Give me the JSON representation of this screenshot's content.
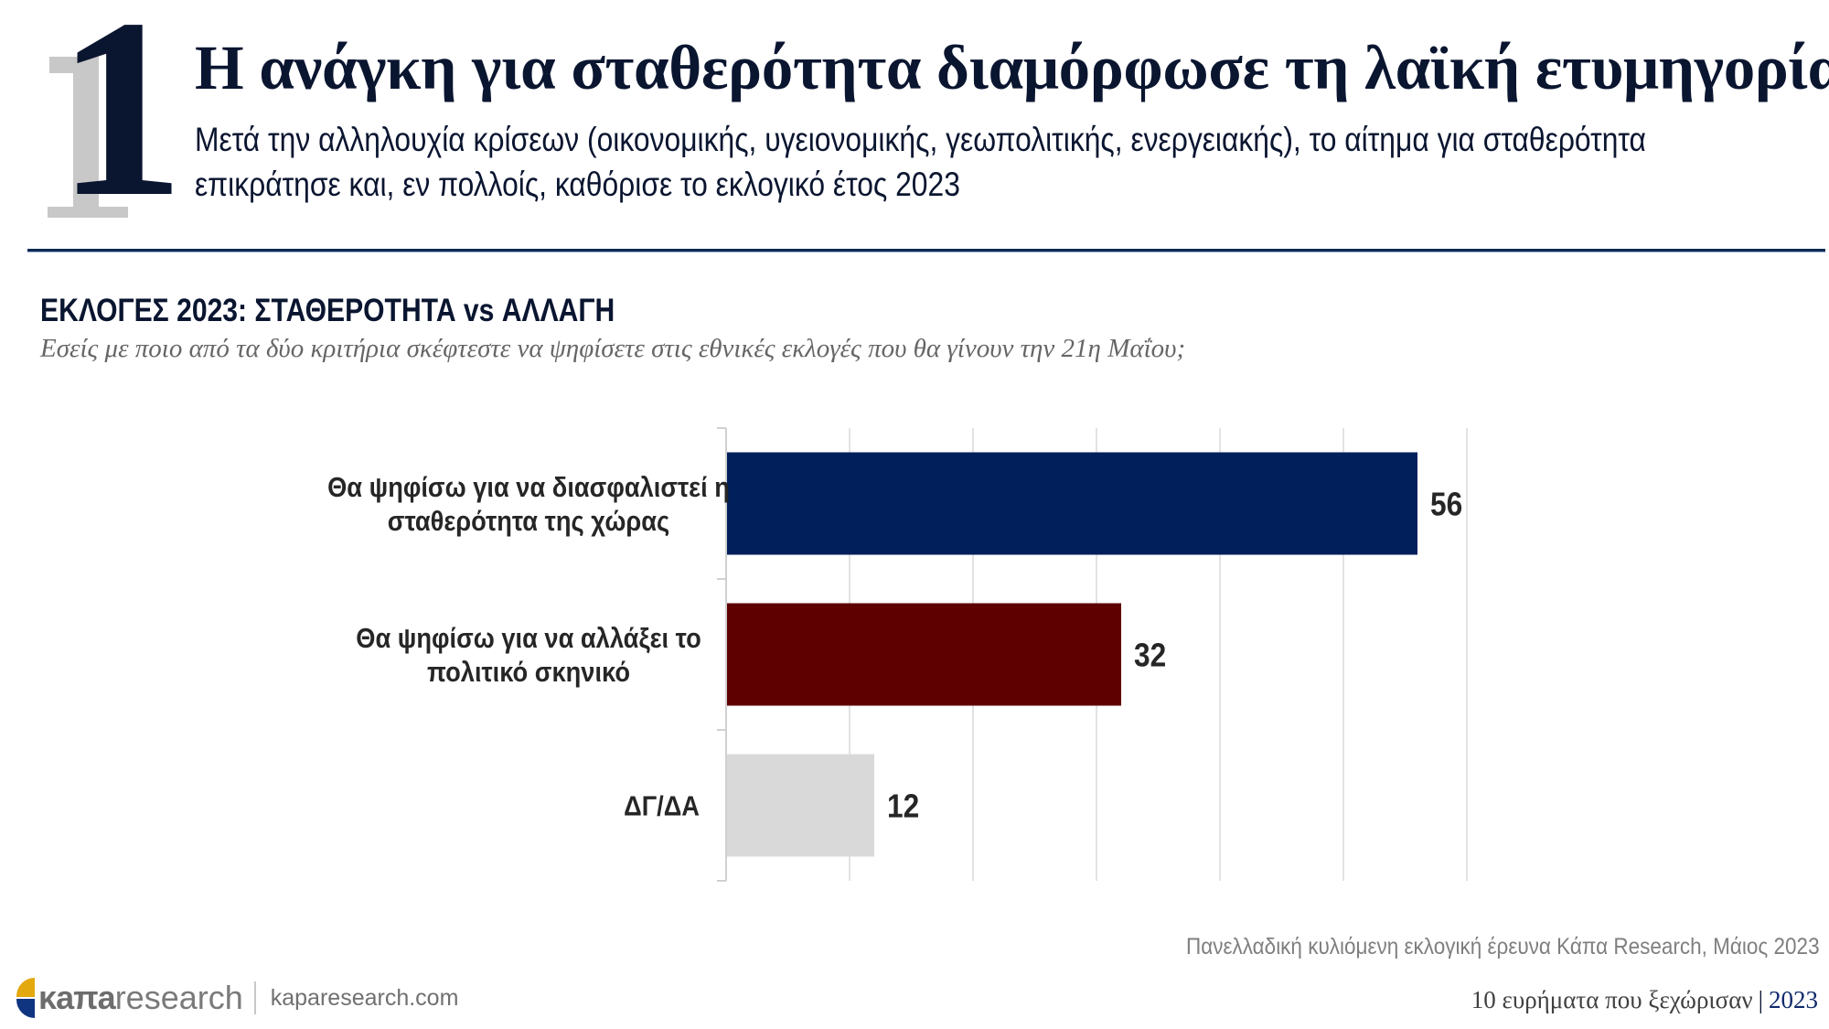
{
  "header": {
    "number": "1",
    "title": "Η ανάγκη για σταθερότητα διαμόρφωσε τη λαϊκή ετυμηγορία",
    "subtitle_line1": "Μετά την αλληλουχία κρίσεων (οικονομικής, υγειονομικής, γεωπολιτικής, ενεργειακής), το αίτημα για σταθερότητα",
    "subtitle_line2": "επικράτησε και, εν πολλοίς, καθόρισε το εκλογικό έτος 2023"
  },
  "section": {
    "title": "ΕΚΛΟΓΕΣ 2023: ΣΤΑΘΕΡΟΤΗΤΑ vs ΑΛΛΑΓΗ",
    "question": "Εσείς με ποιο από τα δύο κριτήρια σκέφτεστε να ψηφίσετε στις εθνικές εκλογές που θα γίνουν την 21η Μαΐου;"
  },
  "chart_data": {
    "type": "bar",
    "orientation": "horizontal",
    "title": "ΕΚΛΟΓΕΣ 2023: ΣΤΑΘΕΡΟΤΗΤΑ vs ΑΛΛΑΓΗ",
    "xlabel": "",
    "ylabel": "",
    "xlim": [
      0,
      60
    ],
    "grid": true,
    "grid_step": 10,
    "categories": [
      [
        "Θα ψηφίσω για να διασφαλιστεί η",
        "σταθερότητα της χώρας"
      ],
      [
        "Θα ψηφίσω για να αλλάξει το",
        "πολιτικό σκηνικό"
      ],
      [
        "ΔΓ/ΔΑ"
      ]
    ],
    "values": [
      56,
      32,
      12
    ],
    "value_labels": [
      "56",
      "32",
      "12"
    ],
    "colors": [
      "#001f5b",
      "#5e0000",
      "#d9d9d9"
    ]
  },
  "footer": {
    "source": "Πανελλαδική κυλιόμενη εκλογική έρευνα Κάπα Research, Μάιος 2023",
    "logo_kana": "κaπa",
    "logo_research": "research",
    "website": "kaparesearch.com",
    "series_label": "10 ευρήματα που ξεχώρισαν",
    "series_separator": "|",
    "series_year": "2023"
  },
  "colors": {
    "navy": "#0a1530",
    "rule": "#0f2a55",
    "logo_yellow": "#e3a80e",
    "logo_blue": "#0f3580"
  }
}
